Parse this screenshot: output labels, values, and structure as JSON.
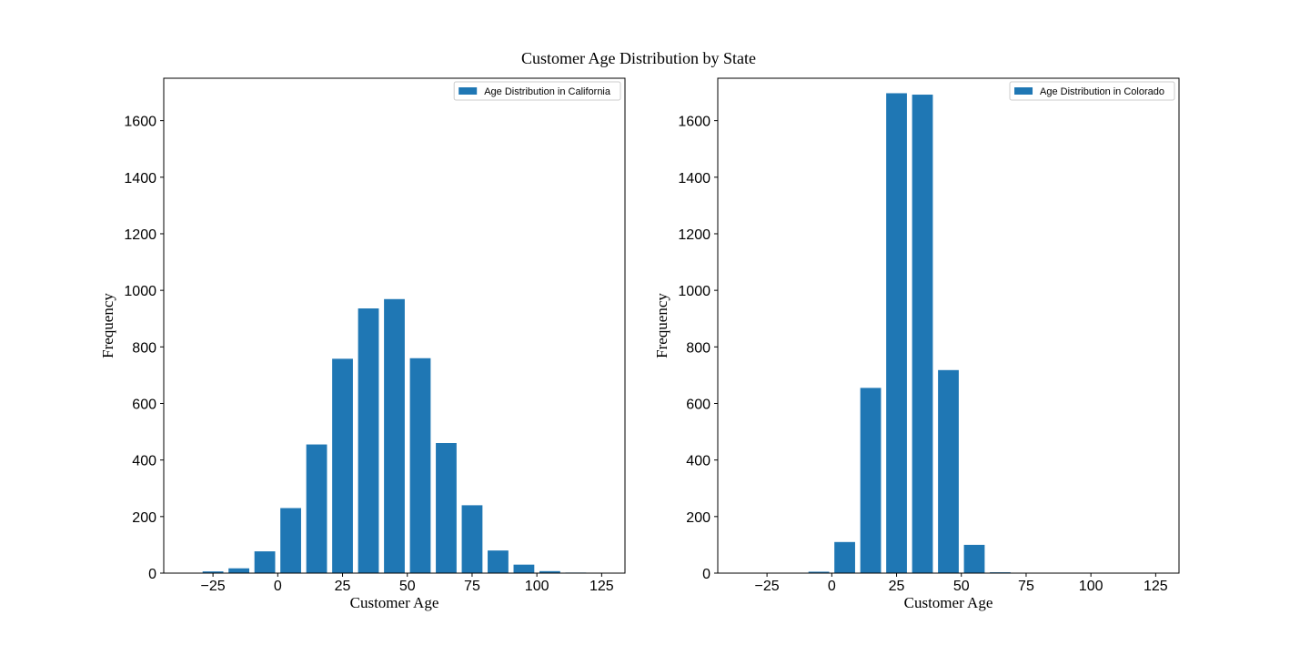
{
  "figure": {
    "title": "Customer Age Distribution by State"
  },
  "chart_data": [
    {
      "type": "bar",
      "title": "",
      "xlabel": "Customer Age",
      "ylabel": "Frequency",
      "xlim": [
        -44,
        134
      ],
      "ylim": [
        0,
        1750
      ],
      "xticks": [
        -25,
        0,
        25,
        50,
        75,
        100,
        125
      ],
      "xtick_labels": [
        "−25",
        "0",
        "25",
        "50",
        "75",
        "100",
        "125"
      ],
      "yticks": [
        0,
        200,
        400,
        600,
        800,
        1000,
        1200,
        1400,
        1600
      ],
      "ytick_labels": [
        "0",
        "200",
        "400",
        "600",
        "800",
        "1000",
        "1200",
        "1400",
        "1600"
      ],
      "bar_width": 8,
      "color": "#1f77b4",
      "legend": {
        "label": "Age Distribution in California",
        "position": "upper right"
      },
      "series": [
        {
          "name": "Age Distribution in California",
          "x": [
            -25,
            -15,
            -5,
            5,
            15,
            25,
            35,
            45,
            55,
            65,
            75,
            85,
            95,
            105,
            115
          ],
          "values": [
            6,
            17,
            77,
            230,
            455,
            758,
            936,
            969,
            760,
            460,
            240,
            80,
            30,
            7,
            2
          ]
        }
      ]
    },
    {
      "type": "bar",
      "title": "",
      "xlabel": "Customer Age",
      "ylabel": "Frequency",
      "xlim": [
        -44,
        134
      ],
      "ylim": [
        0,
        1750
      ],
      "xticks": [
        -25,
        0,
        25,
        50,
        75,
        100,
        125
      ],
      "xtick_labels": [
        "−25",
        "0",
        "25",
        "50",
        "75",
        "100",
        "125"
      ],
      "yticks": [
        0,
        200,
        400,
        600,
        800,
        1000,
        1200,
        1400,
        1600
      ],
      "ytick_labels": [
        "0",
        "200",
        "400",
        "600",
        "800",
        "1000",
        "1200",
        "1400",
        "1600"
      ],
      "bar_width": 8,
      "color": "#1f77b4",
      "legend": {
        "label": "Age Distribution in Colorado",
        "position": "upper right"
      },
      "series": [
        {
          "name": "Age Distribution in Colorado",
          "x": [
            -5,
            5,
            15,
            25,
            35,
            45,
            55,
            65
          ],
          "values": [
            5,
            110,
            655,
            1697,
            1692,
            718,
            100,
            3
          ]
        }
      ]
    }
  ]
}
